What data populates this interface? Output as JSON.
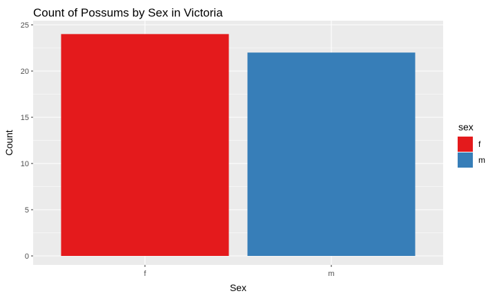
{
  "chart_data": {
    "type": "bar",
    "title": "Count of Possums by Sex in Victoria",
    "xlabel": "Sex",
    "ylabel": "Count",
    "categories": [
      "f",
      "m"
    ],
    "values": [
      24,
      22
    ],
    "colors": [
      "#e41a1c",
      "#377eb8"
    ],
    "ylim": [
      0,
      25
    ],
    "yticks": [
      0,
      5,
      10,
      15,
      20,
      25
    ],
    "grid": true,
    "panel_background": "#ebebeb",
    "tick_label_colors": [
      "#c0395a",
      "#4d4d4d"
    ],
    "legend": {
      "title": "sex",
      "placement": "right",
      "entries": [
        {
          "label": "f",
          "color": "#e41a1c"
        },
        {
          "label": "m",
          "color": "#377eb8"
        }
      ]
    }
  }
}
